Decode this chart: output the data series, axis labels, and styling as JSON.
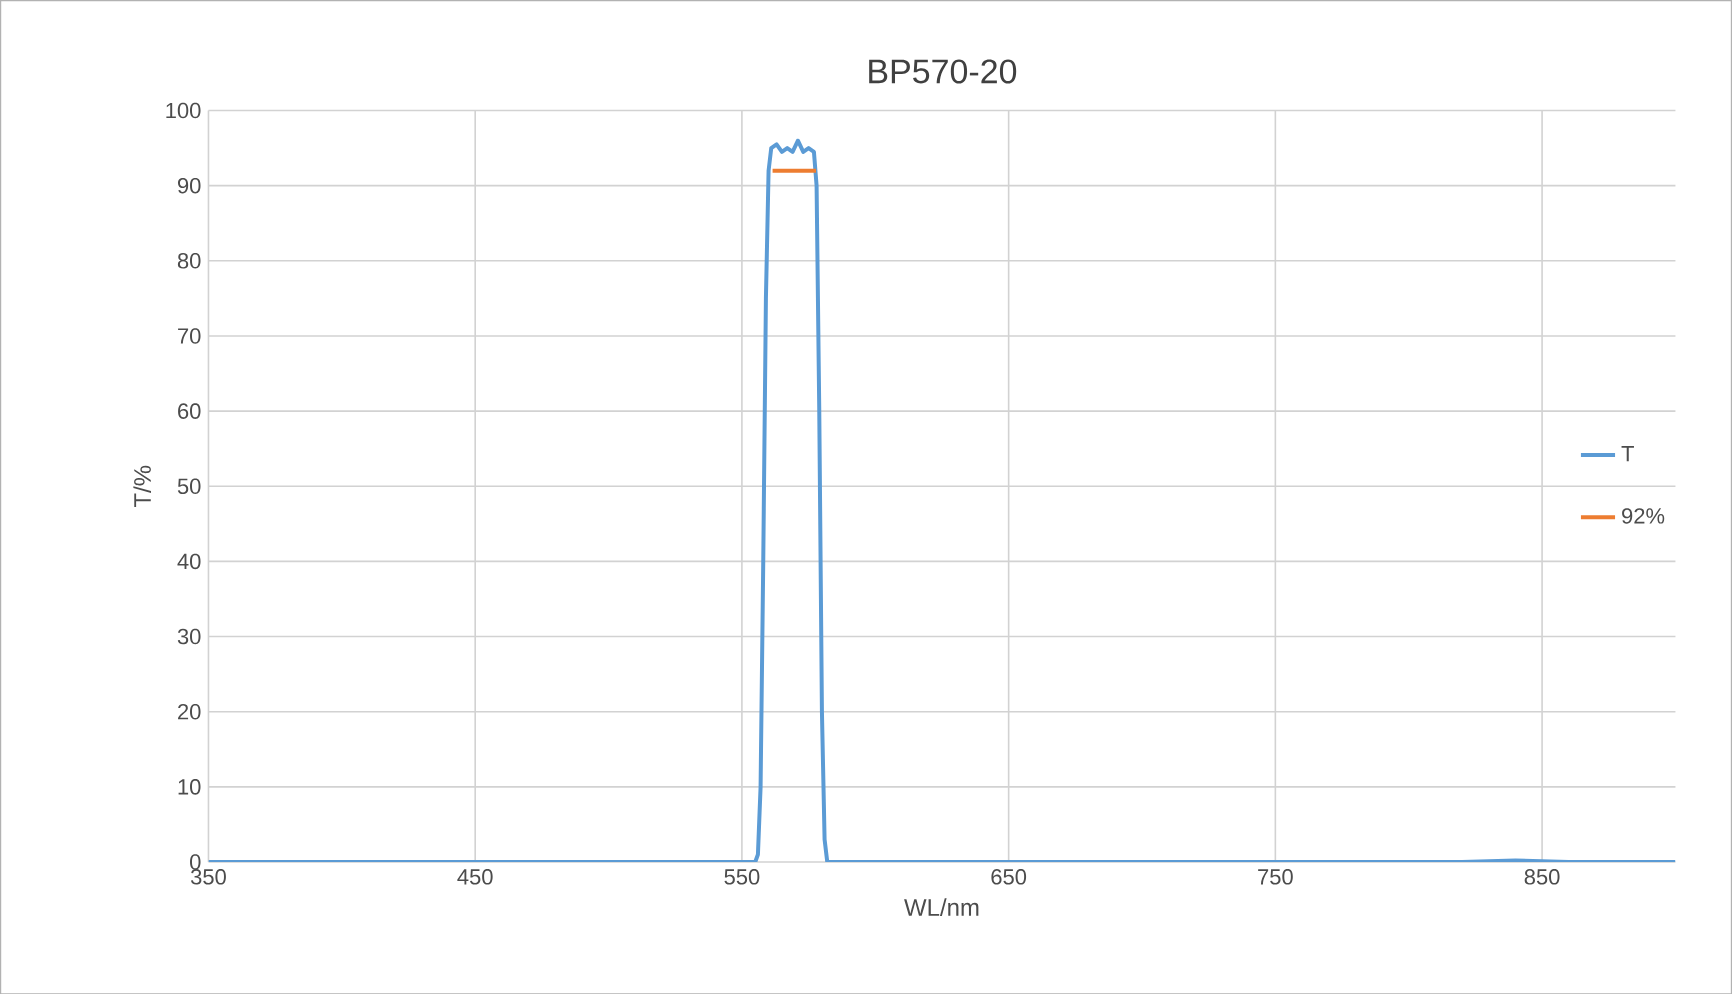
{
  "chart_data": {
    "type": "line",
    "title": "BP570-20",
    "xlabel": "WL/nm",
    "ylabel": "T/%",
    "xlim": [
      350,
      900
    ],
    "xticks": [
      350,
      450,
      550,
      650,
      750,
      850
    ],
    "ylim": [
      0,
      100
    ],
    "yticks": [
      0,
      10,
      20,
      30,
      40,
      50,
      60,
      70,
      80,
      90,
      100
    ],
    "grid": true,
    "legend": "right",
    "series": [
      {
        "name": "T",
        "color": "#5b9bd5",
        "x": [
          350,
          555,
          556,
          557,
          558,
          559,
          560,
          561,
          563,
          565,
          567,
          569,
          571,
          573,
          575,
          577,
          578,
          579,
          580,
          581,
          582,
          820,
          840,
          860,
          900
        ],
        "values": [
          0,
          0,
          1,
          10,
          40,
          75,
          92,
          95,
          95.5,
          94.5,
          95,
          94.5,
          96,
          94.5,
          95,
          94.5,
          90,
          60,
          20,
          3,
          0,
          0,
          0.2,
          0,
          0
        ]
      },
      {
        "name": "92%",
        "color": "#ed7d31",
        "x": [
          561.5,
          577.8
        ],
        "values": [
          92,
          92
        ]
      }
    ]
  }
}
